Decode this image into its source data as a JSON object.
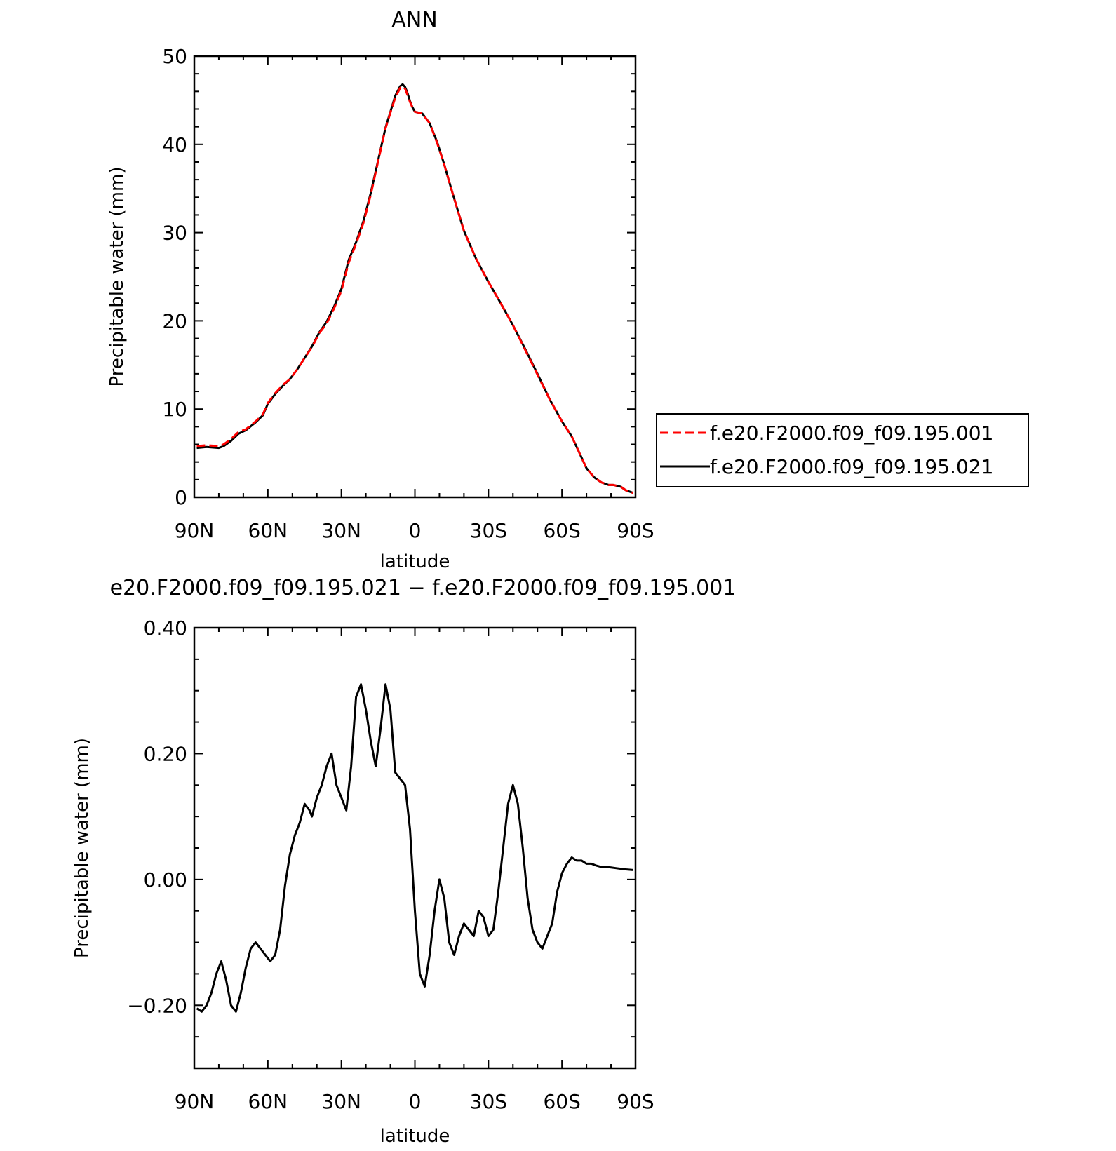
{
  "chart_data": [
    {
      "type": "line",
      "title": "ANN",
      "xlabel": "latitude",
      "ylabel": "Precipitable water (mm)",
      "xlim": [
        90,
        -90
      ],
      "ylim": [
        0,
        50
      ],
      "xticks": [
        90,
        60,
        30,
        0,
        -30,
        -60,
        -90
      ],
      "xtick_labels": [
        "90N",
        "60N",
        "30N",
        "0",
        "30S",
        "60S",
        "90S"
      ],
      "yticks": [
        0,
        10,
        20,
        30,
        40,
        50
      ],
      "ytick_labels": [
        "0",
        "10",
        "20",
        "30",
        "40",
        "50"
      ],
      "legend_position": "right",
      "series": [
        {
          "name": "f.e20.F2000.f09_f09.195.001",
          "color": "#ff0000",
          "dash": "dashed",
          "x": [
            89,
            85,
            80,
            78,
            75,
            72,
            69,
            65,
            62,
            60,
            57,
            54,
            51,
            48,
            45,
            42,
            39,
            36,
            33,
            30,
            27,
            24,
            21,
            18,
            15,
            12,
            10,
            8,
            6,
            5,
            4,
            3,
            2,
            1,
            0,
            -3,
            -6,
            -9,
            -12,
            -15,
            -20,
            -25,
            -30,
            -35,
            -40,
            -45,
            -50,
            -55,
            -60,
            -64,
            -67,
            -70,
            -73,
            -76,
            -79,
            -81,
            -84,
            -86,
            -89
          ],
          "values": [
            5.8,
            5.9,
            5.8,
            6.0,
            6.6,
            7.4,
            7.7,
            8.6,
            9.4,
            10.7,
            11.8,
            12.7,
            13.4,
            14.5,
            15.8,
            17.0,
            18.6,
            19.7,
            21.4,
            23.4,
            26.6,
            28.7,
            31.1,
            34.3,
            38.1,
            41.8,
            43.6,
            45.3,
            46.4,
            46.6,
            46.3,
            45.6,
            44.8,
            44.2,
            43.7,
            43.5,
            42.4,
            40.2,
            37.7,
            34.8,
            30.2,
            27.0,
            24.4,
            22.0,
            19.5,
            16.7,
            13.9,
            11.1,
            8.6,
            6.9,
            5.1,
            3.3,
            2.3,
            1.7,
            1.4,
            1.4,
            1.2,
            0.8,
            0.5
          ]
        },
        {
          "name": "f.e20.F2000.f09_f09.195.021",
          "color": "#000000",
          "dash": "solid",
          "x": [
            89,
            85,
            80,
            78,
            75,
            72,
            69,
            65,
            62,
            60,
            57,
            54,
            51,
            48,
            45,
            42,
            39,
            36,
            33,
            30,
            27,
            24,
            21,
            18,
            15,
            12,
            10,
            8,
            6,
            5,
            4,
            3,
            2,
            1,
            0,
            -3,
            -6,
            -9,
            -12,
            -15,
            -20,
            -25,
            -30,
            -35,
            -40,
            -45,
            -50,
            -55,
            -60,
            -64,
            -67,
            -70,
            -73,
            -76,
            -79,
            -81,
            -84,
            -86,
            -89
          ],
          "values": [
            5.6,
            5.7,
            5.6,
            5.8,
            6.4,
            7.2,
            7.6,
            8.5,
            9.3,
            10.6,
            11.7,
            12.6,
            13.4,
            14.5,
            15.8,
            17.1,
            18.7,
            19.9,
            21.6,
            23.6,
            26.9,
            28.9,
            31.3,
            34.5,
            38.2,
            41.9,
            43.7,
            45.5,
            46.6,
            46.8,
            46.5,
            45.8,
            44.9,
            44.2,
            43.7,
            43.5,
            42.4,
            40.3,
            37.7,
            34.8,
            30.2,
            27.0,
            24.4,
            22.0,
            19.5,
            16.8,
            14.0,
            11.1,
            8.6,
            6.9,
            5.1,
            3.3,
            2.3,
            1.7,
            1.4,
            1.4,
            1.2,
            0.8,
            0.5
          ]
        }
      ]
    },
    {
      "type": "line",
      "title": "e20.F2000.f09_f09.195.021 − f.e20.F2000.f09_f09.195.001",
      "xlabel": "latitude",
      "ylabel": "Precipitable water (mm)",
      "xlim": [
        90,
        -90
      ],
      "ylim": [
        -0.3,
        0.4
      ],
      "xticks": [
        90,
        60,
        30,
        0,
        -30,
        -60,
        -90
      ],
      "xtick_labels": [
        "90N",
        "60N",
        "30N",
        "0",
        "30S",
        "60S",
        "90S"
      ],
      "yticks": [
        -0.2,
        0,
        0.2,
        0.4
      ],
      "ytick_labels": [
        "−0.20",
        "0.00",
        "0.20",
        "0.40"
      ],
      "series": [
        {
          "color": "#000000",
          "dash": "solid",
          "x": [
            89,
            87,
            85,
            83,
            81,
            79,
            77,
            75,
            73,
            71,
            69,
            67,
            65,
            63,
            61,
            59,
            57,
            55,
            53,
            51,
            49,
            47,
            45,
            43,
            42,
            40,
            38,
            36,
            34,
            32,
            30,
            28,
            26,
            24,
            22,
            20,
            18,
            16,
            14,
            12,
            10,
            8,
            6,
            4,
            2,
            0,
            -2,
            -4,
            -6,
            -8,
            -10,
            -12,
            -14,
            -16,
            -18,
            -20,
            -22,
            -24,
            -26,
            -28,
            -30,
            -32,
            -34,
            -36,
            -38,
            -40,
            -42,
            -44,
            -46,
            -48,
            -50,
            -52,
            -54,
            -56,
            -58,
            -60,
            -62,
            -64,
            -66,
            -68,
            -70,
            -72,
            -74,
            -76,
            -78,
            -80,
            -82,
            -84,
            -86,
            -89
          ],
          "values": [
            -0.205,
            -0.21,
            -0.2,
            -0.18,
            -0.15,
            -0.13,
            -0.16,
            -0.2,
            -0.21,
            -0.18,
            -0.14,
            -0.11,
            -0.1,
            -0.11,
            -0.12,
            -0.13,
            -0.12,
            -0.08,
            -0.01,
            0.04,
            0.07,
            0.09,
            0.12,
            0.11,
            0.1,
            0.13,
            0.15,
            0.18,
            0.2,
            0.15,
            0.13,
            0.11,
            0.18,
            0.29,
            0.31,
            0.27,
            0.22,
            0.18,
            0.24,
            0.31,
            0.27,
            0.17,
            0.16,
            0.15,
            0.08,
            -0.05,
            -0.15,
            -0.17,
            -0.12,
            -0.05,
            0.0,
            -0.03,
            -0.1,
            -0.12,
            -0.09,
            -0.07,
            -0.08,
            -0.09,
            -0.05,
            -0.06,
            -0.09,
            -0.08,
            -0.02,
            0.05,
            0.12,
            0.15,
            0.12,
            0.05,
            -0.03,
            -0.08,
            -0.1,
            -0.11,
            -0.09,
            -0.07,
            -0.02,
            0.01,
            0.025,
            0.035,
            0.03,
            0.03,
            0.025,
            0.025,
            0.022,
            0.02,
            0.02,
            0.019,
            0.018,
            0.017,
            0.016,
            0.015
          ]
        }
      ]
    }
  ]
}
